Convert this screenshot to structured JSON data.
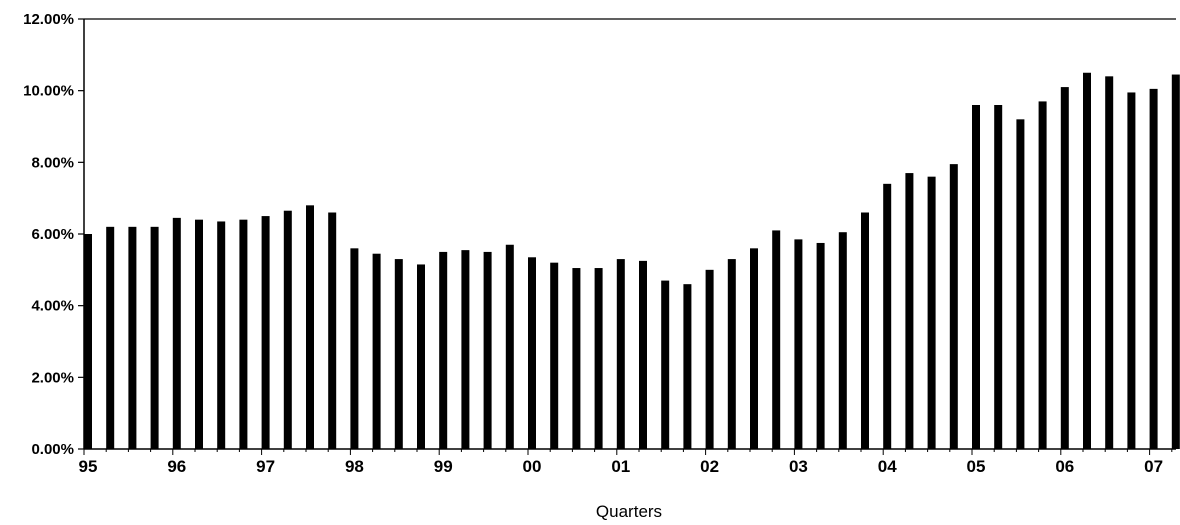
{
  "chart_data": {
    "type": "bar",
    "title": "",
    "xlabel": "Quarters",
    "ylabel": "",
    "ylim": [
      0,
      12
    ],
    "yticks": [
      0,
      2,
      4,
      6,
      8,
      10,
      12
    ],
    "ytick_labels": [
      "0.00%",
      "2.00%",
      "4.00%",
      "6.00%",
      "8.00%",
      "10.00%",
      "12.00%"
    ],
    "year_labels": [
      "95",
      "96",
      "97",
      "98",
      "99",
      "00",
      "01",
      "02",
      "03",
      "04",
      "05",
      "06",
      "07"
    ],
    "grid": false,
    "legend": "none",
    "bar_color": "#000000",
    "values": [
      6.0,
      6.2,
      6.2,
      6.2,
      6.45,
      6.4,
      6.35,
      6.4,
      6.5,
      6.65,
      6.8,
      6.6,
      5.6,
      5.45,
      5.3,
      5.15,
      5.5,
      5.55,
      5.5,
      5.7,
      5.35,
      5.2,
      5.05,
      5.05,
      5.3,
      5.25,
      4.7,
      4.6,
      5.0,
      5.3,
      5.6,
      6.1,
      5.85,
      5.75,
      6.05,
      6.6,
      7.4,
      7.7,
      7.6,
      7.95,
      9.6,
      9.6,
      9.2,
      9.7,
      10.1,
      10.5,
      10.4,
      9.95,
      10.05,
      10.45
    ]
  }
}
